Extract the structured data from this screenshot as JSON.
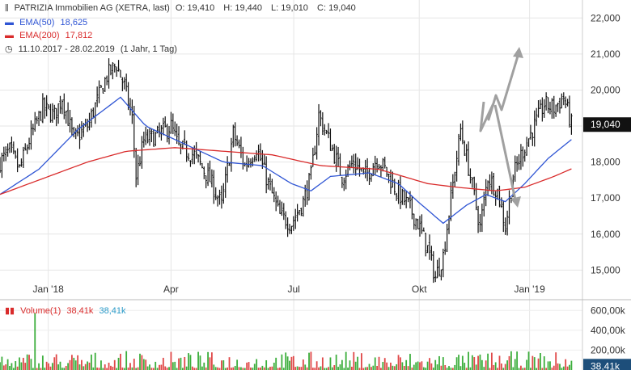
{
  "chart_data": [
    {
      "type": "candlestick",
      "title": "PATRIZIA Immobilien AG (XETRA, last)",
      "ohlc": {
        "O": "19,410",
        "H": "19,440",
        "L": "19,010",
        "C": "19,040"
      },
      "date_range": "11.10.2017 - 28.02.2019",
      "range_note": "(1 Jahr, 1 Tag)",
      "last_price_label": "19,040",
      "ylim": [
        14200,
        22500
      ],
      "y_ticks": [
        15000,
        16000,
        17000,
        18000,
        19000,
        20000,
        21000,
        22000
      ],
      "y_tick_labels": [
        "15,000",
        "16,000",
        "17,000",
        "18,000",
        "19,000",
        "20,000",
        "21,000",
        "22,000"
      ],
      "x_ticks": [
        "Jan '18",
        "Apr",
        "Jul",
        "Okt",
        "Jan '19"
      ],
      "grid": true,
      "price_keypoints": [
        {
          "d": 0,
          "v": 18.0
        },
        {
          "d": 5,
          "v": 18.3
        },
        {
          "d": 10,
          "v": 17.8
        },
        {
          "d": 15,
          "v": 18.6
        },
        {
          "d": 22,
          "v": 19.5
        },
        {
          "d": 28,
          "v": 19.3
        },
        {
          "d": 32,
          "v": 19.8
        },
        {
          "d": 38,
          "v": 18.6
        },
        {
          "d": 45,
          "v": 19.0
        },
        {
          "d": 50,
          "v": 19.7
        },
        {
          "d": 55,
          "v": 20.4
        },
        {
          "d": 60,
          "v": 20.7
        },
        {
          "d": 64,
          "v": 20.1
        },
        {
          "d": 68,
          "v": 19.2
        },
        {
          "d": 70,
          "v": 17.6
        },
        {
          "d": 74,
          "v": 18.6
        },
        {
          "d": 80,
          "v": 18.7
        },
        {
          "d": 88,
          "v": 19.0
        },
        {
          "d": 92,
          "v": 18.4
        },
        {
          "d": 100,
          "v": 18.2
        },
        {
          "d": 108,
          "v": 17.5
        },
        {
          "d": 114,
          "v": 16.8
        },
        {
          "d": 120,
          "v": 18.8
        },
        {
          "d": 126,
          "v": 17.9
        },
        {
          "d": 132,
          "v": 18.4
        },
        {
          "d": 138,
          "v": 17.4
        },
        {
          "d": 144,
          "v": 16.5
        },
        {
          "d": 150,
          "v": 16.3
        },
        {
          "d": 156,
          "v": 16.9
        },
        {
          "d": 160,
          "v": 17.6
        },
        {
          "d": 164,
          "v": 19.3
        },
        {
          "d": 170,
          "v": 18.5
        },
        {
          "d": 176,
          "v": 17.6
        },
        {
          "d": 182,
          "v": 18.0
        },
        {
          "d": 188,
          "v": 17.6
        },
        {
          "d": 194,
          "v": 18.1
        },
        {
          "d": 198,
          "v": 17.8
        },
        {
          "d": 204,
          "v": 17.2
        },
        {
          "d": 210,
          "v": 16.8
        },
        {
          "d": 215,
          "v": 16.3
        },
        {
          "d": 220,
          "v": 15.6
        },
        {
          "d": 224,
          "v": 14.8
        },
        {
          "d": 228,
          "v": 15.4
        },
        {
          "d": 232,
          "v": 17.0
        },
        {
          "d": 237,
          "v": 18.9
        },
        {
          "d": 242,
          "v": 17.6
        },
        {
          "d": 247,
          "v": 16.2
        },
        {
          "d": 251,
          "v": 17.6
        },
        {
          "d": 256,
          "v": 17.2
        },
        {
          "d": 260,
          "v": 16.2
        },
        {
          "d": 264,
          "v": 17.6
        },
        {
          "d": 268,
          "v": 18.2
        },
        {
          "d": 274,
          "v": 18.9
        },
        {
          "d": 280,
          "v": 19.6
        },
        {
          "d": 285,
          "v": 19.5
        },
        {
          "d": 290,
          "v": 19.8
        },
        {
          "d": 294,
          "v": 19.04
        }
      ],
      "series": [
        {
          "name": "EMA(50)",
          "last": "18,625",
          "color": "#2f55d4",
          "values": [
            {
              "d": 0,
              "v": 17.1
            },
            {
              "d": 20,
              "v": 17.8
            },
            {
              "d": 40,
              "v": 18.9
            },
            {
              "d": 62,
              "v": 19.8
            },
            {
              "d": 75,
              "v": 19.0
            },
            {
              "d": 95,
              "v": 18.5
            },
            {
              "d": 115,
              "v": 18.0
            },
            {
              "d": 135,
              "v": 17.9
            },
            {
              "d": 150,
              "v": 17.4
            },
            {
              "d": 160,
              "v": 17.2
            },
            {
              "d": 170,
              "v": 17.6
            },
            {
              "d": 190,
              "v": 17.7
            },
            {
              "d": 205,
              "v": 17.4
            },
            {
              "d": 215,
              "v": 16.9
            },
            {
              "d": 228,
              "v": 16.3
            },
            {
              "d": 240,
              "v": 16.8
            },
            {
              "d": 250,
              "v": 17.1
            },
            {
              "d": 260,
              "v": 16.9
            },
            {
              "d": 270,
              "v": 17.4
            },
            {
              "d": 282,
              "v": 18.1
            },
            {
              "d": 294,
              "v": 18.625
            }
          ]
        },
        {
          "name": "EMA(200)",
          "last": "17,812",
          "color": "#d92b2b",
          "values": [
            {
              "d": 0,
              "v": 17.1
            },
            {
              "d": 20,
              "v": 17.5
            },
            {
              "d": 45,
              "v": 18.0
            },
            {
              "d": 65,
              "v": 18.3
            },
            {
              "d": 90,
              "v": 18.4
            },
            {
              "d": 115,
              "v": 18.3
            },
            {
              "d": 140,
              "v": 18.2
            },
            {
              "d": 165,
              "v": 17.9
            },
            {
              "d": 195,
              "v": 17.8
            },
            {
              "d": 220,
              "v": 17.4
            },
            {
              "d": 235,
              "v": 17.3
            },
            {
              "d": 255,
              "v": 17.2
            },
            {
              "d": 270,
              "v": 17.3
            },
            {
              "d": 285,
              "v": 17.6
            },
            {
              "d": 294,
              "v": 17.812
            }
          ]
        }
      ],
      "days_total": 298
    },
    {
      "type": "bar",
      "title": "Volume(1)",
      "last_red": "38,41k",
      "last_blue": "38,41k",
      "last_price_label": "38,41k",
      "y_ticks": [
        200000,
        400000,
        600000
      ],
      "y_tick_labels": [
        "200,00k",
        "400,00k",
        "600,00k"
      ],
      "ylim": [
        0,
        700000
      ],
      "spike": {
        "d": 18,
        "v": 570000
      },
      "typical_max": 170000
    }
  ],
  "forecast_arrows": {
    "color": "#a0a0a0",
    "scenarios": [
      "up",
      "down"
    ]
  }
}
